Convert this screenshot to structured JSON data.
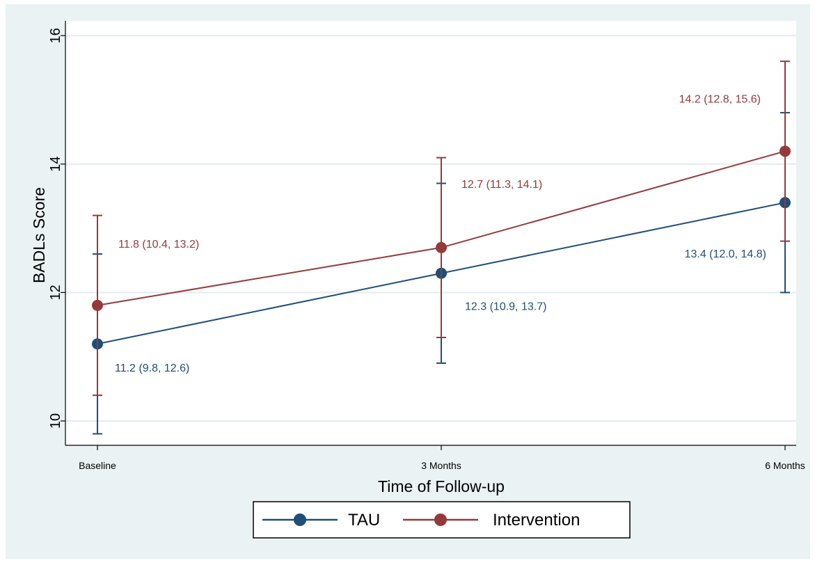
{
  "chart_data": {
    "type": "line",
    "title": "",
    "xlabel": "Time of Follow-up",
    "ylabel": "BADLs Score",
    "categories": [
      "Baseline",
      "3 Months",
      "6 Months"
    ],
    "ylim": [
      9.75,
      16.2
    ],
    "yticks": [
      10,
      12,
      14,
      16
    ],
    "grid": true,
    "legend_position": "bottom",
    "series": [
      {
        "name": "TAU",
        "color": "#1f4e79",
        "values": [
          11.2,
          12.3,
          13.4
        ],
        "ci_lower": [
          9.8,
          10.9,
          12.0
        ],
        "ci_upper": [
          12.6,
          13.7,
          14.8
        ],
        "labels": [
          "11.2 (9.8, 12.6)",
          "12.3 (10.9, 13.7)",
          "13.4 (12.0, 14.8)"
        ]
      },
      {
        "name": "Intervention",
        "color": "#943a3a",
        "values": [
          11.8,
          12.7,
          14.2
        ],
        "ci_lower": [
          10.4,
          11.3,
          12.8
        ],
        "ci_upper": [
          13.2,
          14.1,
          15.6
        ],
        "labels": [
          "11.8 (10.4, 13.2)",
          "12.7 (11.3, 14.1)",
          "14.2 (12.8, 15.6)"
        ]
      }
    ]
  }
}
